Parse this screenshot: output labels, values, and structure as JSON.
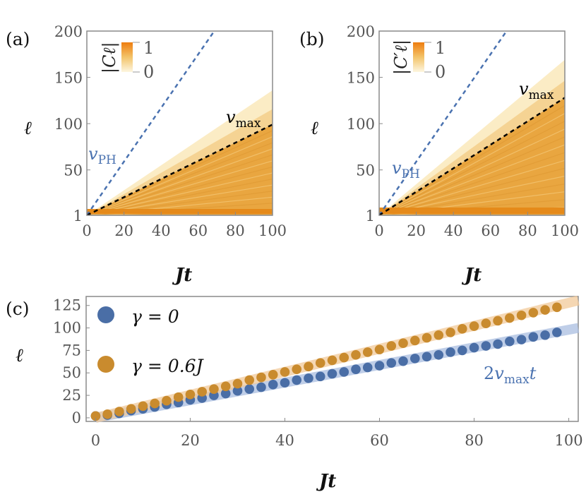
{
  "chart_data": [
    {
      "panel_label": "(a)",
      "type": "heatmap",
      "xlabel": "Jt",
      "ylabel": "ℓ",
      "xlim": [
        0,
        100
      ],
      "ylim": [
        1,
        200
      ],
      "xticks": [
        "0",
        "20",
        "40",
        "60",
        "80",
        "100"
      ],
      "yticks": [
        "1",
        "50",
        "100",
        "150",
        "200"
      ],
      "colorbar": {
        "label": "|C_ℓ|",
        "label_text": "|Cℓ|",
        "min_label": "0",
        "max_label": "1"
      },
      "lines": [
        {
          "name": "v_PH",
          "label_main": "v",
          "label_sub": "PH",
          "slope": 2.9,
          "style": "dashed",
          "color": "#4a72b0"
        },
        {
          "name": "v_max",
          "label_main": "v",
          "label_sub": "max",
          "slope": 0.98,
          "style": "dashed",
          "color": "#000000"
        }
      ],
      "front_slope": 1.35
    },
    {
      "panel_label": "(b)",
      "type": "heatmap",
      "xlabel": "Jt",
      "ylabel": "ℓ",
      "xlim": [
        0,
        100
      ],
      "ylim": [
        1,
        200
      ],
      "xticks": [
        "0",
        "20",
        "40",
        "60",
        "80",
        "100"
      ],
      "yticks": [
        "1",
        "50",
        "100",
        "150",
        "200"
      ],
      "colorbar": {
        "label": "|C′_ℓ|",
        "label_text": "|C′ℓ|",
        "min_label": "0",
        "max_label": "1"
      },
      "lines": [
        {
          "name": "v_PH",
          "label_main": "v",
          "label_sub": "PH",
          "slope": 2.9,
          "style": "dashed",
          "color": "#4a72b0"
        },
        {
          "name": "v_max",
          "label_main": "v",
          "label_sub": "max",
          "slope": 1.27,
          "style": "dashed",
          "color": "#000000"
        }
      ],
      "front_slope": 1.68
    },
    {
      "panel_label": "(c)",
      "type": "scatter",
      "xlabel": "Jt",
      "ylabel": "ℓ",
      "xlim": [
        -2,
        102
      ],
      "ylim": [
        -4,
        135
      ],
      "xticks": [
        "0",
        "20",
        "40",
        "60",
        "80",
        "100"
      ],
      "yticks": [
        "0",
        "25",
        "50",
        "75",
        "100",
        "125"
      ],
      "x": [
        0,
        2.5,
        5,
        7.5,
        10,
        12.5,
        15,
        17.5,
        20,
        22.5,
        25,
        27.5,
        30,
        32.5,
        35,
        37.5,
        40,
        42.5,
        45,
        47.5,
        50,
        52.5,
        55,
        57.5,
        60,
        62.5,
        65,
        67.5,
        70,
        72.5,
        75,
        77.5,
        80,
        82.5,
        85,
        87.5,
        90,
        92.5,
        95,
        97.5
      ],
      "series": [
        {
          "name": "γ = 0",
          "legend_main": "γ = 0",
          "color": "#4a6ea6",
          "values": [
            2,
            3,
            5,
            8,
            10,
            12,
            15,
            17,
            20,
            22,
            25,
            27,
            30,
            32,
            34,
            37,
            39,
            42,
            44,
            46,
            49,
            51,
            54,
            56,
            58,
            61,
            63,
            66,
            68,
            70,
            73,
            75,
            78,
            80,
            82,
            85,
            87,
            90,
            92,
            95
          ],
          "guide": {
            "slope": 0.98,
            "intercept": 0,
            "color": "#a9bde0"
          }
        },
        {
          "name": "γ = 0.6J",
          "legend_main": "γ = 0.6",
          "legend_italic": "J",
          "color": "#c98b2e",
          "values": [
            2,
            4,
            7,
            10,
            13,
            16,
            19,
            23,
            26,
            29,
            32,
            35,
            38,
            42,
            45,
            48,
            51,
            54,
            57,
            61,
            64,
            67,
            70,
            73,
            76,
            80,
            83,
            86,
            89,
            92,
            95,
            99,
            102,
            105,
            108,
            111,
            114,
            117,
            120,
            123
          ],
          "guide": {
            "slope": 1.28,
            "intercept": 0,
            "color": "#f2c999"
          }
        }
      ],
      "annotation": {
        "text": "2v_max t",
        "pre": "2",
        "main": "v",
        "sub": "max",
        "post": "t",
        "color": "#4a72b0"
      }
    }
  ]
}
